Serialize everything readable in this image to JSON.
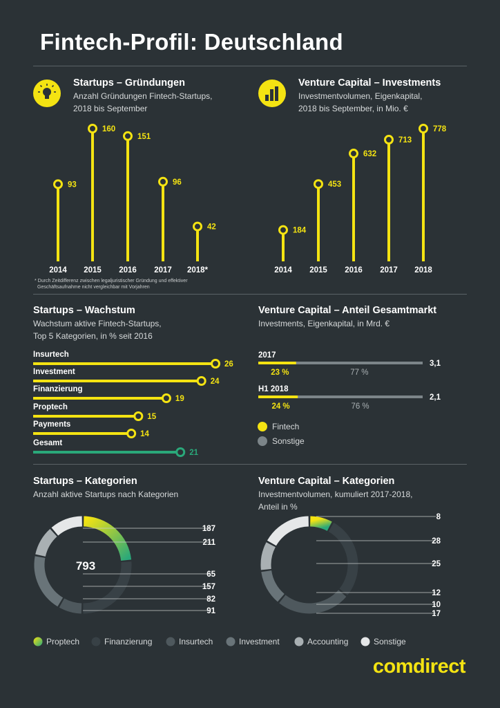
{
  "title": "Fintech-Profil: Deutschland",
  "colors": {
    "yellow": "#f4e312",
    "green": "#2aa87a",
    "bg": "#2b3236",
    "grey_track": "#7c8589"
  },
  "sec1": {
    "title": "Startups – Gründungen",
    "sub1": "Anzahl Gründungen Fintech-Startups,",
    "sub2": "2018 bis September",
    "icon": "lightbulb-icon",
    "footnote1": "* Durch Zeitdifferenz zwischen legaljuristischer Gründung und effektiver",
    "footnote2": "Geschäftsaufnahme nicht vergleichbar mit Vorjahren"
  },
  "sec2": {
    "title": "Venture Capital – Investments",
    "sub1": "Investmentvolumen, Eigenkapital,",
    "sub2": "2018 bis September, in Mio. €",
    "icon": "coin-stacks-icon"
  },
  "sec3": {
    "title": "Startups – Wachstum",
    "sub1": "Wachstum aktive Fintech-Startups,",
    "sub2": "Top 5 Kategorien, in % seit 2016"
  },
  "sec4": {
    "title": "Venture Capital – Anteil Gesamtmarkt",
    "sub1": "Investments, Eigenkapital, in Mrd. €",
    "legend": [
      "Fintech",
      "Sonstige"
    ]
  },
  "sec5": {
    "title": "Startups – Kategorien",
    "sub1": "Anzahl aktive Startups nach Kategorien",
    "center": "793"
  },
  "sec6": {
    "title": "Venture Capital – Kategorien",
    "sub1": "Investmentvolumen, kumuliert 2017-2018,",
    "sub2": "Anteil in %"
  },
  "legend_bottom": [
    "Proptech",
    "Finanzierung",
    "Insurtech",
    "Investment",
    "Accounting",
    "Sonstige"
  ],
  "logo": "comdirect",
  "chart_data": [
    {
      "type": "bar",
      "name": "Startups – Gründungen",
      "categories": [
        "2014",
        "2015",
        "2016",
        "2017",
        "2018*"
      ],
      "values": [
        93,
        160,
        151,
        96,
        42
      ]
    },
    {
      "type": "bar",
      "name": "Venture Capital – Investments",
      "categories": [
        "2014",
        "2015",
        "2016",
        "2017",
        "2018"
      ],
      "values": [
        184,
        453,
        632,
        713,
        778
      ]
    },
    {
      "type": "bar",
      "name": "Startups – Wachstum",
      "categories": [
        "Insurtech",
        "Investment",
        "Finanzierung",
        "Proptech",
        "Payments",
        "Gesamt"
      ],
      "values": [
        26,
        24,
        19,
        15,
        14,
        21
      ]
    },
    {
      "type": "bar",
      "name": "Venture Capital – Anteil Gesamtmarkt",
      "categories": [
        "2017",
        "H1 2018"
      ],
      "totals": [
        "3,1",
        "2,1"
      ],
      "fintech_share": [
        "23 %",
        "24 %"
      ],
      "other_share": [
        "77 %",
        "76 %"
      ],
      "fintech_pct": [
        23,
        24
      ],
      "other_pct": [
        77,
        76
      ]
    },
    {
      "type": "pie",
      "name": "Startups – Kategorien",
      "labels": [
        "Proptech",
        "Finanzierung",
        "Insurtech",
        "Investment",
        "Accounting",
        "Sonstige"
      ],
      "values": [
        187,
        211,
        65,
        157,
        82,
        91
      ],
      "total": 793
    },
    {
      "type": "pie",
      "name": "Venture Capital – Kategorien",
      "labels": [
        "Proptech",
        "Finanzierung",
        "Insurtech",
        "Investment",
        "Accounting",
        "Sonstige"
      ],
      "values": [
        8,
        28,
        25,
        12,
        10,
        17
      ]
    }
  ]
}
